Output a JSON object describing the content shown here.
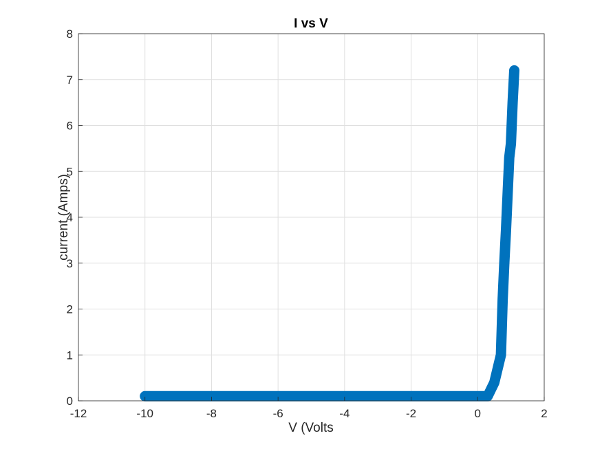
{
  "chart_data": {
    "type": "line",
    "title": "I vs V",
    "xlabel": "V (Volts",
    "ylabel": "current (Amps)",
    "xlim": [
      -12,
      2
    ],
    "ylim": [
      0,
      8
    ],
    "xticks": [
      "-12",
      "-10",
      "-8",
      "-6",
      "-4",
      "-2",
      "0",
      "2"
    ],
    "yticks": [
      "0",
      "1",
      "2",
      "3",
      "4",
      "5",
      "6",
      "7",
      "8"
    ],
    "grid": true,
    "series_color": "#0072BD",
    "series": [
      {
        "x": [
          -10.0,
          -9.0,
          -8.0,
          -7.0,
          -6.0,
          -5.0,
          -4.0,
          -3.0,
          -2.0,
          -1.0,
          0.0,
          0.3,
          0.5,
          0.6,
          0.7,
          0.75,
          0.8,
          0.85,
          0.9,
          0.95,
          1.0,
          1.05,
          1.1
        ],
        "y": [
          0.1,
          0.1,
          0.1,
          0.1,
          0.1,
          0.1,
          0.1,
          0.1,
          0.1,
          0.1,
          0.1,
          0.1,
          0.4,
          0.7,
          1.0,
          2.2,
          3.0,
          3.7,
          4.5,
          5.3,
          5.6,
          6.5,
          7.2
        ]
      }
    ]
  }
}
